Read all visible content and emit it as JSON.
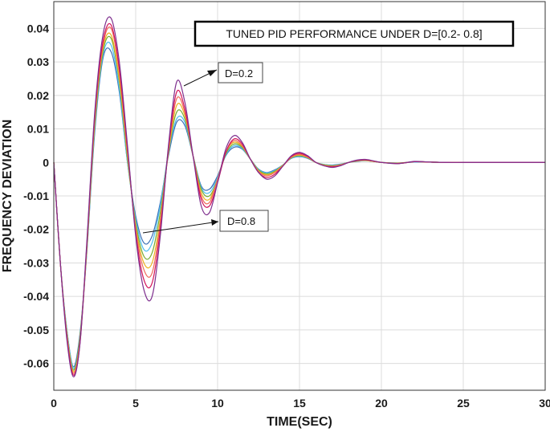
{
  "chart_data": {
    "type": "line",
    "title": "TUNED PID PERFORMANCE UNDER D=[0.2- 0.8]",
    "xlabel": "TIME(SEC)",
    "ylabel": "FREQUENCY DEVIATION",
    "xlim": [
      0,
      30
    ],
    "ylim": [
      -0.068,
      0.048
    ],
    "x_ticks": [
      0,
      5,
      10,
      15,
      20,
      25,
      30
    ],
    "y_ticks": [
      0.04,
      0.03,
      0.02,
      0.01,
      0,
      -0.01,
      -0.02,
      -0.03,
      -0.04,
      -0.05,
      -0.06
    ],
    "x_tick_labels": [
      "0",
      "5",
      "10",
      "15",
      "20",
      "25",
      "30"
    ],
    "y_tick_labels": [
      "0.04",
      "0.03",
      "0.02",
      "0.01",
      "0",
      "-0.01",
      "-0.02",
      "-0.03",
      "-0.04",
      "-0.05",
      "-0.06"
    ],
    "grid": true,
    "x": [
      0,
      0.4,
      0.8,
      1.2,
      1.6,
      2.0,
      2.5,
      3.0,
      3.5,
      4.0,
      4.5,
      5.0,
      5.5,
      6.0,
      6.5,
      7.0,
      7.5,
      8.0,
      8.5,
      9.0,
      9.5,
      10.0,
      10.5,
      11.0,
      11.5,
      12.0,
      12.5,
      13.0,
      13.5,
      14.0,
      14.5,
      15.0,
      15.5,
      16.0,
      16.5,
      17.0,
      17.5,
      18.0,
      18.5,
      19.0,
      19.5,
      20.0,
      21.0,
      22.0,
      23.0,
      24.0,
      25.0,
      26.0,
      27.0,
      28.0,
      29.0,
      30.0
    ],
    "series": [
      {
        "color": "#7E2F8E",
        "values": [
          0,
          -0.03,
          -0.053,
          -0.064,
          -0.054,
          -0.025,
          0.015,
          0.038,
          0.043,
          0.03,
          0.005,
          -0.022,
          -0.038,
          -0.04,
          -0.022,
          0.005,
          0.024,
          0.018,
          0.002,
          -0.013,
          -0.015,
          -0.006,
          0.004,
          0.008,
          0.006,
          0.001,
          -0.003,
          -0.005,
          -0.004,
          -0.001,
          0.002,
          0.003,
          0.002,
          0.0,
          -0.001,
          -0.0015,
          -0.001,
          0.0,
          0.0007,
          0.0009,
          0.0005,
          0.0,
          -0.0004,
          0.0003,
          0.0001,
          0,
          0,
          0,
          0,
          0,
          0,
          0
        ]
      },
      {
        "color": "#D4145A",
        "values": [
          0,
          -0.03,
          -0.052,
          -0.0635,
          -0.054,
          -0.026,
          0.014,
          0.036,
          0.041,
          0.028,
          0.004,
          -0.021,
          -0.035,
          -0.036,
          -0.02,
          0.004,
          0.021,
          0.016,
          0.002,
          -0.011,
          -0.013,
          -0.006,
          0.003,
          0.007,
          0.0055,
          0.001,
          -0.003,
          -0.0045,
          -0.0035,
          -0.001,
          0.0018,
          0.0027,
          0.0018,
          0.0,
          -0.001,
          -0.0013,
          -0.0009,
          0.0,
          0.0006,
          0.0008,
          0.0004,
          0.0,
          -0.0003,
          0.0002,
          0.0001,
          0,
          0,
          0,
          0,
          0,
          0,
          0
        ]
      },
      {
        "color": "#EE6A5B",
        "values": [
          0,
          -0.03,
          -0.052,
          -0.063,
          -0.053,
          -0.026,
          0.013,
          0.035,
          0.04,
          0.027,
          0.003,
          -0.02,
          -0.032,
          -0.033,
          -0.018,
          0.004,
          0.019,
          0.015,
          0.002,
          -0.01,
          -0.012,
          -0.005,
          0.003,
          0.0065,
          0.005,
          0.001,
          -0.0027,
          -0.004,
          -0.003,
          -0.001,
          0.0016,
          0.0024,
          0.0016,
          0.0,
          -0.0009,
          -0.0012,
          -0.0008,
          0.0,
          0.0005,
          0.0007,
          0.0004,
          0.0,
          -0.0003,
          0.0002,
          0.0001,
          0,
          0,
          0,
          0,
          0,
          0,
          0
        ]
      },
      {
        "color": "#EDB120",
        "values": [
          0,
          -0.03,
          -0.051,
          -0.0625,
          -0.053,
          -0.027,
          0.012,
          0.034,
          0.038,
          0.025,
          0.002,
          -0.019,
          -0.03,
          -0.03,
          -0.017,
          0.003,
          0.017,
          0.014,
          0.002,
          -0.009,
          -0.011,
          -0.005,
          0.003,
          0.006,
          0.0048,
          0.001,
          -0.0025,
          -0.0037,
          -0.0028,
          -0.0008,
          0.0015,
          0.0022,
          0.0015,
          0.0,
          -0.0008,
          -0.0011,
          -0.0007,
          0.0,
          0.0005,
          0.0006,
          0.0003,
          0.0,
          -0.0003,
          0.0002,
          0.0001,
          0,
          0,
          0,
          0,
          0,
          0,
          0
        ]
      },
      {
        "color": "#77AC30",
        "values": [
          0,
          -0.03,
          -0.051,
          -0.062,
          -0.052,
          -0.027,
          0.011,
          0.033,
          0.037,
          0.024,
          0.001,
          -0.018,
          -0.028,
          -0.027,
          -0.015,
          0.003,
          0.015,
          0.013,
          0.002,
          -0.008,
          -0.01,
          -0.005,
          0.0025,
          0.0055,
          0.0045,
          0.001,
          -0.0023,
          -0.0034,
          -0.0026,
          -0.0008,
          0.0014,
          0.002,
          0.0014,
          0.0,
          -0.0007,
          -0.001,
          -0.0007,
          0.0,
          0.0004,
          0.0006,
          0.0003,
          0.0,
          -0.0002,
          0.0002,
          0.0001,
          0,
          0,
          0,
          0,
          0,
          0,
          0
        ]
      },
      {
        "color": "#4DBEEE",
        "values": [
          0,
          -0.03,
          -0.05,
          -0.0615,
          -0.052,
          -0.028,
          0.01,
          0.032,
          0.035,
          0.022,
          0.0,
          -0.017,
          -0.026,
          -0.024,
          -0.013,
          0.003,
          0.013,
          0.012,
          0.002,
          -0.0075,
          -0.009,
          -0.0045,
          0.0022,
          0.005,
          0.0042,
          0.001,
          -0.0021,
          -0.0031,
          -0.0024,
          -0.0007,
          0.0013,
          0.0018,
          0.0013,
          0.0,
          -0.0006,
          -0.0009,
          -0.0006,
          0.0,
          0.0004,
          0.0005,
          0.0003,
          0.0,
          -0.0002,
          0.0001,
          0.0001,
          0,
          0,
          0,
          0,
          0,
          0,
          0
        ]
      },
      {
        "color": "#3B6FB6",
        "values": [
          0,
          -0.03,
          -0.05,
          -0.061,
          -0.051,
          -0.028,
          0.009,
          0.031,
          0.033,
          0.021,
          0.0,
          -0.016,
          -0.024,
          -0.022,
          -0.012,
          0.002,
          0.012,
          0.011,
          0.002,
          -0.007,
          -0.008,
          -0.004,
          0.002,
          0.0045,
          0.004,
          0.001,
          -0.002,
          -0.003,
          -0.0022,
          -0.0007,
          0.0012,
          0.0017,
          0.0012,
          0.0,
          -0.0006,
          -0.0008,
          -0.0005,
          0.0,
          0.0003,
          0.0005,
          0.0003,
          0.0,
          -0.0002,
          0.0001,
          0.0001,
          0,
          0,
          0,
          0,
          0,
          0,
          0
        ]
      }
    ],
    "annotations": [
      {
        "text": "D=0.2",
        "arrow_to": {
          "x": 7.9,
          "y": 0.023
        }
      },
      {
        "text": "D=0.8",
        "arrow_to": {
          "x": 5.2,
          "y": -0.026
        }
      }
    ]
  }
}
